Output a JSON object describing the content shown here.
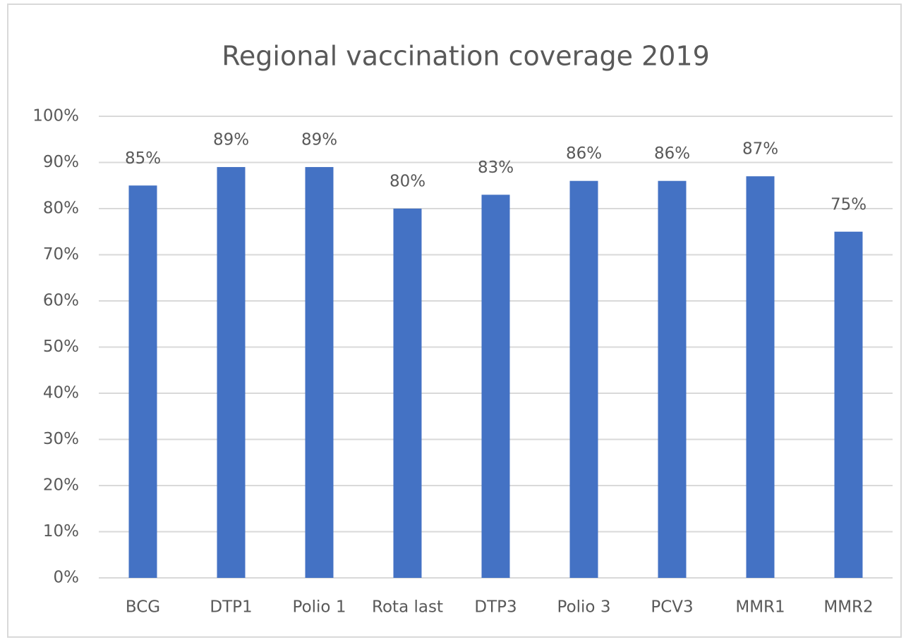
{
  "chart_data": {
    "type": "bar",
    "title": "Regional vaccination coverage 2019",
    "categories": [
      "BCG",
      "DTP1",
      "Polio 1",
      "Rota last",
      "DTP3",
      "Polio 3",
      "PCV3",
      "MMR1",
      "MMR2"
    ],
    "values": [
      85,
      89,
      89,
      80,
      83,
      86,
      86,
      87,
      75
    ],
    "value_labels": [
      "85%",
      "89%",
      "89%",
      "80%",
      "83%",
      "86%",
      "86%",
      "87%",
      "75%"
    ],
    "color": "#4472c4",
    "ylim": [
      0,
      100
    ],
    "yticks": [
      {
        "value": 0,
        "label": "0%"
      },
      {
        "value": 10,
        "label": "10%"
      },
      {
        "value": 20,
        "label": "20%"
      },
      {
        "value": 30,
        "label": "30%"
      },
      {
        "value": 40,
        "label": "40%"
      },
      {
        "value": 50,
        "label": "50%"
      },
      {
        "value": 60,
        "label": "60%"
      },
      {
        "value": 70,
        "label": "70%"
      },
      {
        "value": 80,
        "label": "80%"
      },
      {
        "value": 90,
        "label": "90%"
      },
      {
        "value": 100,
        "label": "100%"
      }
    ],
    "grid": true
  }
}
